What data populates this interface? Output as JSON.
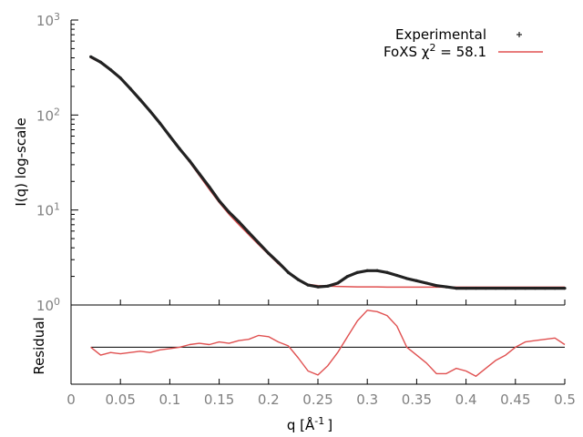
{
  "chart_data": {
    "type": "line",
    "xlabel": "q [Å",
    "xlabel_superscript": "-1",
    "xlabel_close": "]",
    "xlim": [
      0,
      0.5
    ],
    "x_ticks": [
      0,
      0.05,
      0.1,
      0.15,
      0.2,
      0.25,
      0.3,
      0.35,
      0.4,
      0.45,
      0.5
    ],
    "x_tick_labels": [
      "0",
      "0.05",
      "0.1",
      "0.15",
      "0.2",
      "0.25",
      "0.3",
      "0.35",
      "0.4",
      "0.45",
      "0.5"
    ],
    "panels": [
      {
        "name": "main",
        "ylabel": "I(q) log-scale",
        "yscale": "log",
        "ylim": [
          1,
          1000
        ],
        "y_ticks": [
          1,
          10,
          100,
          1000
        ],
        "y_tick_bases": [
          "10",
          "10",
          "10",
          "10"
        ],
        "y_tick_exponents": [
          "0",
          "1",
          "2",
          "3"
        ],
        "legend_position": "top-right",
        "series": [
          {
            "name": "Experimental",
            "style": "points",
            "color": "#222222",
            "x": [
              0.02,
              0.03,
              0.04,
              0.05,
              0.06,
              0.07,
              0.08,
              0.09,
              0.1,
              0.11,
              0.12,
              0.13,
              0.14,
              0.15,
              0.16,
              0.17,
              0.18,
              0.19,
              0.2,
              0.21,
              0.22,
              0.23,
              0.24,
              0.25,
              0.26,
              0.27,
              0.28,
              0.29,
              0.3,
              0.31,
              0.32,
              0.33,
              0.34,
              0.35,
              0.36,
              0.37,
              0.38,
              0.39,
              0.4,
              0.41,
              0.42,
              0.43,
              0.44,
              0.45,
              0.46,
              0.47,
              0.48,
              0.49,
              0.5
            ],
            "y": [
              410,
              360,
              300,
              245,
              190,
              145,
              110,
              82,
              60,
              44,
              33,
              24,
              17.5,
              12.5,
              9.5,
              7.5,
              5.8,
              4.5,
              3.5,
              2.8,
              2.2,
              1.85,
              1.62,
              1.55,
              1.58,
              1.7,
              2.0,
              2.2,
              2.3,
              2.3,
              2.2,
              2.05,
              1.9,
              1.8,
              1.7,
              1.6,
              1.55,
              1.5,
              1.5,
              1.5,
              1.5,
              1.5,
              1.5,
              1.5,
              1.5,
              1.5,
              1.5,
              1.5,
              1.5
            ]
          },
          {
            "name": "FoXS χ² = 58.1",
            "legend_label": "FoXS χ",
            "legend_superscript": "2",
            "legend_suffix": " = 58.1",
            "style": "line",
            "color": "#e05050",
            "x": [
              0.02,
              0.03,
              0.04,
              0.05,
              0.06,
              0.07,
              0.08,
              0.09,
              0.1,
              0.11,
              0.12,
              0.13,
              0.14,
              0.15,
              0.16,
              0.17,
              0.18,
              0.19,
              0.2,
              0.21,
              0.22,
              0.23,
              0.24,
              0.25,
              0.26,
              0.27,
              0.28,
              0.29,
              0.3,
              0.31,
              0.32,
              0.33,
              0.34,
              0.35,
              0.36,
              0.37,
              0.38,
              0.39,
              0.4,
              0.41,
              0.42,
              0.43,
              0.44,
              0.45,
              0.46,
              0.47,
              0.48,
              0.49,
              0.5
            ],
            "y": [
              400,
              355,
              295,
              240,
              188,
              145,
              110,
              82,
              60,
              44,
              32,
              23,
              16.5,
              12,
              9,
              7,
              5.5,
              4.3,
              3.4,
              2.7,
              2.2,
              1.85,
              1.65,
              1.6,
              1.58,
              1.57,
              1.56,
              1.55,
              1.55,
              1.55,
              1.54,
              1.54,
              1.54,
              1.54,
              1.54,
              1.54,
              1.54,
              1.54,
              1.54,
              1.54,
              1.54,
              1.54,
              1.54,
              1.54,
              1.54,
              1.54,
              1.54,
              1.54,
              1.54
            ]
          }
        ]
      },
      {
        "name": "residual",
        "ylabel": "Residual",
        "series": [
          {
            "name": "Residual",
            "style": "line",
            "color": "#e05050",
            "x": [
              0.02,
              0.03,
              0.04,
              0.05,
              0.06,
              0.07,
              0.08,
              0.09,
              0.1,
              0.11,
              0.12,
              0.13,
              0.14,
              0.15,
              0.16,
              0.17,
              0.18,
              0.19,
              0.2,
              0.21,
              0.22,
              0.23,
              0.24,
              0.25,
              0.26,
              0.27,
              0.28,
              0.29,
              0.3,
              0.31,
              0.32,
              0.33,
              0.34,
              0.35,
              0.36,
              0.37,
              0.38,
              0.39,
              0.4,
              0.41,
              0.42,
              0.43,
              0.44,
              0.45,
              0.46,
              0.47,
              0.48,
              0.49,
              0.5
            ],
            "y": [
              0.0,
              -0.3,
              -0.2,
              -0.25,
              -0.2,
              -0.15,
              -0.2,
              -0.1,
              -0.05,
              0.0,
              0.1,
              0.15,
              0.1,
              0.2,
              0.15,
              0.25,
              0.3,
              0.45,
              0.4,
              0.2,
              0.05,
              -0.4,
              -0.9,
              -1.05,
              -0.7,
              -0.2,
              0.4,
              1.0,
              1.4,
              1.35,
              1.2,
              0.8,
              0.0,
              -0.3,
              -0.6,
              -1.0,
              -1.0,
              -0.8,
              -0.9,
              -1.1,
              -0.8,
              -0.5,
              -0.3,
              0.0,
              0.2,
              0.25,
              0.3,
              0.35,
              0.1
            ]
          },
          {
            "name": "Zero",
            "style": "line",
            "color": "#000000",
            "x": [
              0.02,
              0.5
            ],
            "y": [
              0,
              0
            ]
          }
        ]
      }
    ]
  }
}
